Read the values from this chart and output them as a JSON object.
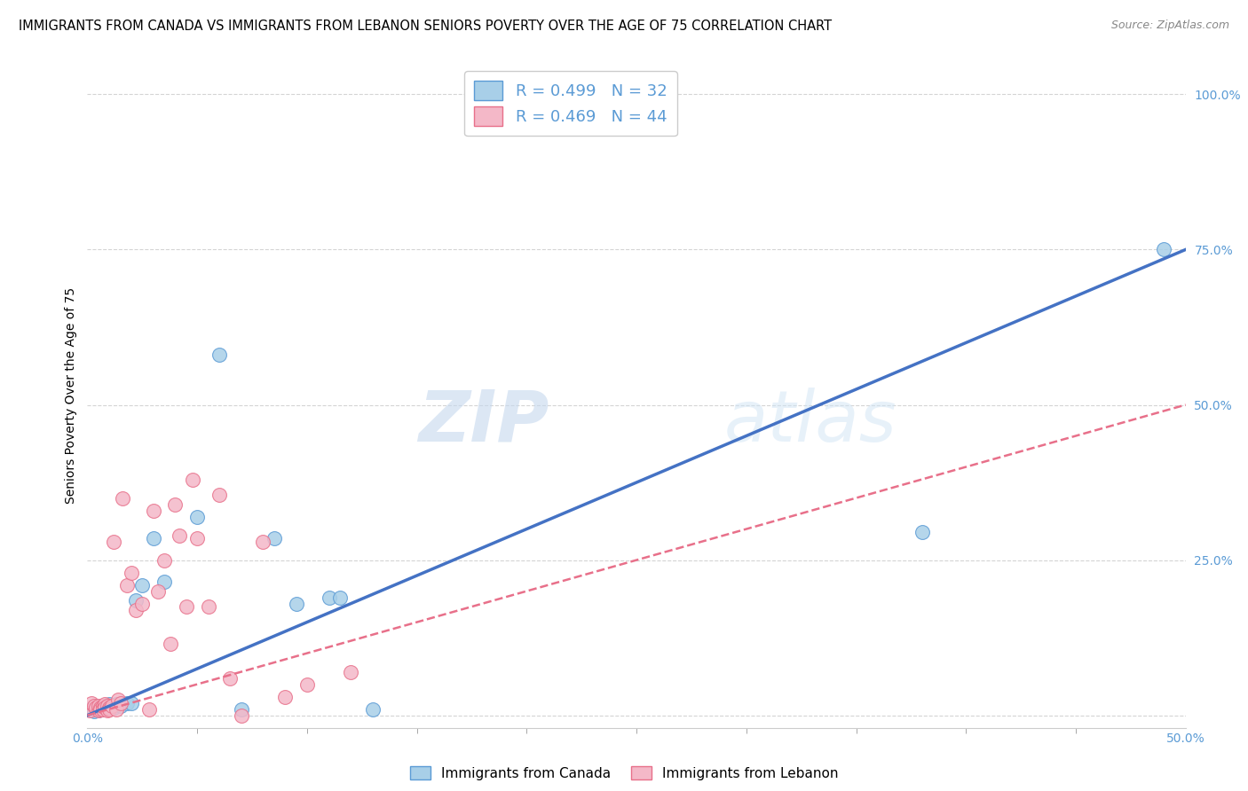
{
  "title": "IMMIGRANTS FROM CANADA VS IMMIGRANTS FROM LEBANON SENIORS POVERTY OVER THE AGE OF 75 CORRELATION CHART",
  "source": "Source: ZipAtlas.com",
  "ylabel": "Seniors Poverty Over the Age of 75",
  "xlim": [
    0.0,
    0.5
  ],
  "ylim": [
    -0.02,
    1.05
  ],
  "x_ticks_major": [
    0.0,
    0.5
  ],
  "x_tick_labels_major": [
    "0.0%",
    "50.0%"
  ],
  "x_ticks_minor": [
    0.05,
    0.1,
    0.15,
    0.2,
    0.25,
    0.3,
    0.35,
    0.4,
    0.45
  ],
  "y_ticks": [
    0.0,
    0.25,
    0.5,
    0.75,
    1.0
  ],
  "y_tick_labels": [
    "",
    "25.0%",
    "50.0%",
    "75.0%",
    "100.0%"
  ],
  "canada_color": "#a8cfe8",
  "canada_edge_color": "#5b9bd5",
  "lebanon_color": "#f4b8c8",
  "lebanon_edge_color": "#e8708a",
  "canada_line_color": "#4472c4",
  "lebanon_line_color": "#e8708a",
  "canada_R": 0.499,
  "canada_N": 32,
  "lebanon_R": 0.469,
  "lebanon_N": 44,
  "watermark": "ZIPatlas",
  "canada_points_x": [
    0.001,
    0.002,
    0.003,
    0.004,
    0.004,
    0.005,
    0.005,
    0.006,
    0.007,
    0.008,
    0.009,
    0.01,
    0.011,
    0.012,
    0.013,
    0.015,
    0.018,
    0.02,
    0.022,
    0.025,
    0.03,
    0.035,
    0.05,
    0.06,
    0.07,
    0.085,
    0.095,
    0.11,
    0.115,
    0.13,
    0.38,
    0.49
  ],
  "canada_points_y": [
    0.01,
    0.008,
    0.006,
    0.012,
    0.015,
    0.01,
    0.008,
    0.012,
    0.01,
    0.015,
    0.012,
    0.018,
    0.015,
    0.012,
    0.018,
    0.015,
    0.02,
    0.02,
    0.185,
    0.21,
    0.285,
    0.215,
    0.32,
    0.58,
    0.01,
    0.285,
    0.18,
    0.19,
    0.19,
    0.01,
    0.295,
    0.75
  ],
  "lebanon_points_x": [
    0.001,
    0.002,
    0.003,
    0.004,
    0.005,
    0.005,
    0.006,
    0.006,
    0.007,
    0.007,
    0.008,
    0.008,
    0.009,
    0.009,
    0.01,
    0.01,
    0.011,
    0.012,
    0.013,
    0.014,
    0.015,
    0.016,
    0.018,
    0.02,
    0.022,
    0.025,
    0.028,
    0.03,
    0.032,
    0.035,
    0.038,
    0.04,
    0.042,
    0.045,
    0.048,
    0.05,
    0.055,
    0.06,
    0.065,
    0.07,
    0.08,
    0.09,
    0.1,
    0.12
  ],
  "lebanon_points_y": [
    0.008,
    0.02,
    0.015,
    0.012,
    0.008,
    0.015,
    0.012,
    0.01,
    0.015,
    0.01,
    0.018,
    0.012,
    0.008,
    0.015,
    0.012,
    0.01,
    0.015,
    0.28,
    0.01,
    0.025,
    0.02,
    0.35,
    0.21,
    0.23,
    0.17,
    0.18,
    0.01,
    0.33,
    0.2,
    0.25,
    0.115,
    0.34,
    0.29,
    0.175,
    0.38,
    0.285,
    0.175,
    0.355,
    0.06,
    0.0,
    0.28,
    0.03,
    0.05,
    0.07
  ],
  "background_color": "#ffffff",
  "grid_color": "#d0d0d0",
  "tick_color": "#5b9bd5",
  "title_fontsize": 10.5,
  "label_fontsize": 10,
  "tick_fontsize": 10,
  "legend_fontsize": 13,
  "marker_size": 130
}
